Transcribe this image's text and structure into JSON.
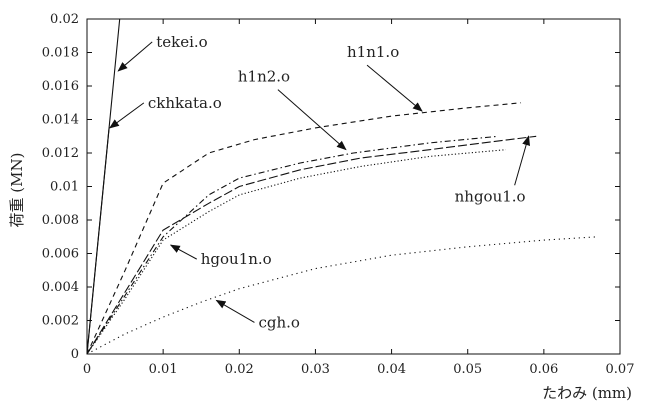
{
  "chart_data": {
    "type": "line",
    "title": "",
    "xlabel": "たわみ (mm)",
    "ylabel": "荷重 (MN)",
    "xlim": [
      0,
      0.07
    ],
    "ylim": [
      0,
      0.02
    ],
    "x_ticks": [
      "0",
      "0.01",
      "0.02",
      "0.03",
      "0.04",
      "0.05",
      "0.06",
      "0.07"
    ],
    "y_ticks": [
      "0",
      "0.002",
      "0.004",
      "0.006",
      "0.008",
      "0.01",
      "0.012",
      "0.014",
      "0.016",
      "0.018",
      "0.02"
    ],
    "grid": false,
    "legend": "none",
    "series": [
      {
        "name": "tekei.o",
        "style": "solid",
        "x": [
          0,
          0.0043
        ],
        "y": [
          0,
          0.02
        ]
      },
      {
        "name": "ckhkata.o",
        "style": "solid",
        "x": [
          0,
          0.0029
        ],
        "y": [
          0,
          0.0135
        ]
      },
      {
        "name": "h1n1.o",
        "style": "dashed",
        "x": [
          0,
          0.005,
          0.01,
          0.016,
          0.022,
          0.03,
          0.04,
          0.05,
          0.057
        ],
        "y": [
          0,
          0.005,
          0.0102,
          0.012,
          0.0128,
          0.0135,
          0.0142,
          0.0147,
          0.015
        ]
      },
      {
        "name": "h1n2.o",
        "style": "dash-dot",
        "x": [
          0,
          0.005,
          0.01,
          0.016,
          0.02,
          0.028,
          0.035,
          0.045,
          0.054
        ],
        "y": [
          0,
          0.0035,
          0.007,
          0.0095,
          0.0105,
          0.0114,
          0.012,
          0.0126,
          0.013
        ]
      },
      {
        "name": "hgou1n.o",
        "style": "dense-dot",
        "x": [
          0,
          0.005,
          0.01,
          0.016,
          0.02,
          0.028,
          0.036,
          0.045,
          0.055
        ],
        "y": [
          0,
          0.0033,
          0.0068,
          0.0085,
          0.0095,
          0.0105,
          0.0112,
          0.0118,
          0.0122
        ]
      },
      {
        "name": "nhgou1.o",
        "style": "long-dash",
        "x": [
          0,
          0.005,
          0.01,
          0.016,
          0.02,
          0.028,
          0.036,
          0.045,
          0.052,
          0.059
        ],
        "y": [
          0,
          0.0037,
          0.0074,
          0.009,
          0.01,
          0.011,
          0.0117,
          0.0122,
          0.0126,
          0.013
        ]
      },
      {
        "name": "cgh.o",
        "style": "dotted",
        "x": [
          0,
          0.005,
          0.01,
          0.015,
          0.02,
          0.03,
          0.04,
          0.05,
          0.06,
          0.067
        ],
        "y": [
          0,
          0.0012,
          0.0022,
          0.0031,
          0.0039,
          0.0051,
          0.0059,
          0.0064,
          0.0068,
          0.007
        ]
      }
    ],
    "annotations": [
      {
        "text": "tekei.o",
        "series": "tekei.o",
        "point": [
          0.0041,
          0.0169
        ]
      },
      {
        "text": "ckhkata.o",
        "series": "ckhkata.o",
        "point": [
          0.003,
          0.0135
        ]
      },
      {
        "text": "h1n1.o",
        "series": "h1n1.o",
        "point": [
          0.044,
          0.0145
        ]
      },
      {
        "text": "h1n2.o",
        "series": "h1n2.o",
        "point": [
          0.034,
          0.0122
        ]
      },
      {
        "text": "hgou1n.o",
        "series": "hgou1n.o",
        "point": [
          0.011,
          0.0065
        ]
      },
      {
        "text": "nhgou1.o",
        "series": "nhgou1.o",
        "point": [
          0.058,
          0.013
        ]
      },
      {
        "text": "cgh.o",
        "series": "cgh.o",
        "point": [
          0.017,
          0.0032
        ]
      }
    ]
  }
}
